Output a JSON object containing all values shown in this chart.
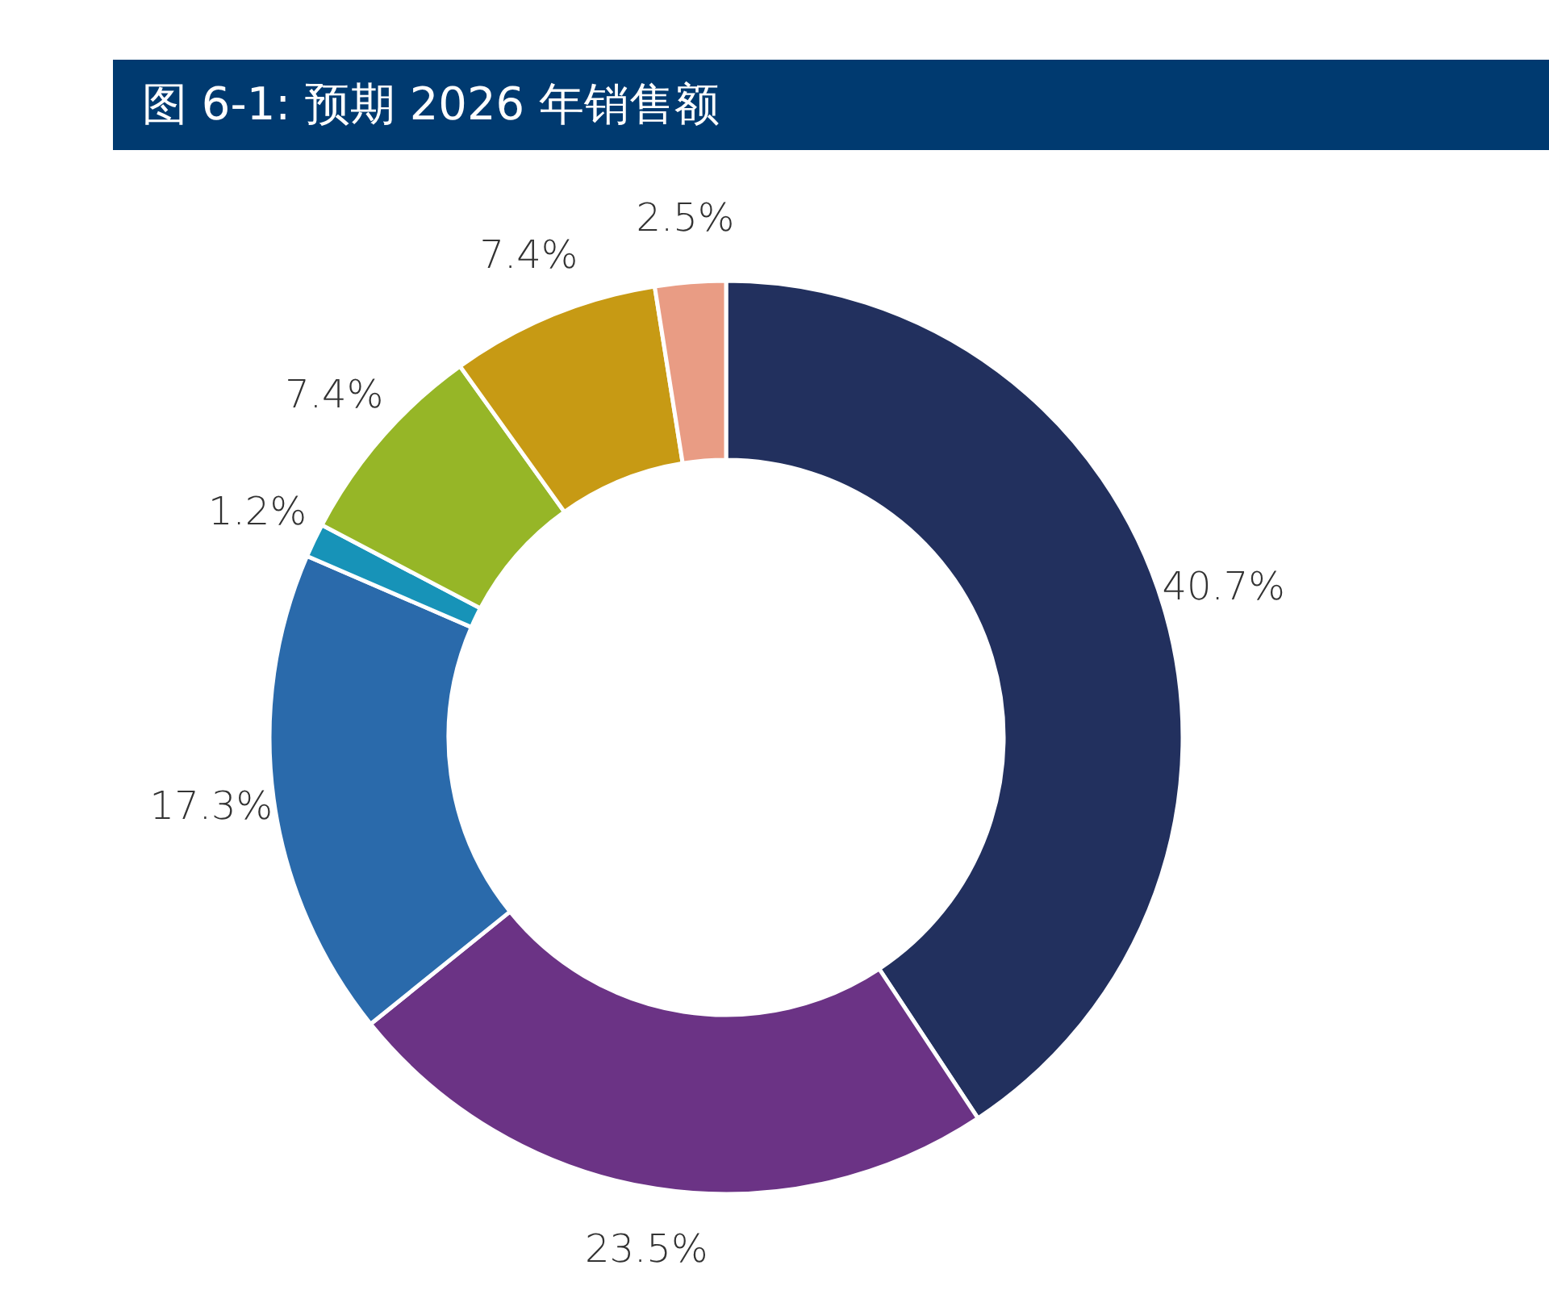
{
  "chart_data": {
    "type": "donut",
    "title": "图 6-1: 预期 2026 年销售额",
    "categories": [
      null,
      null,
      null,
      null,
      null,
      null,
      null
    ],
    "values": [
      40.7,
      23.5,
      17.3,
      1.2,
      7.4,
      7.4,
      2.5
    ],
    "colors": [
      "#22305e",
      "#6b3385",
      "#2a6aab",
      "#1793b8",
      "#96b627",
      "#c79a14",
      "#e99c84"
    ],
    "value_labels": [
      "40.7%",
      "23.5%",
      "17.3%",
      "1.2%",
      "7.4%",
      "7.4%",
      "2.5%"
    ]
  }
}
